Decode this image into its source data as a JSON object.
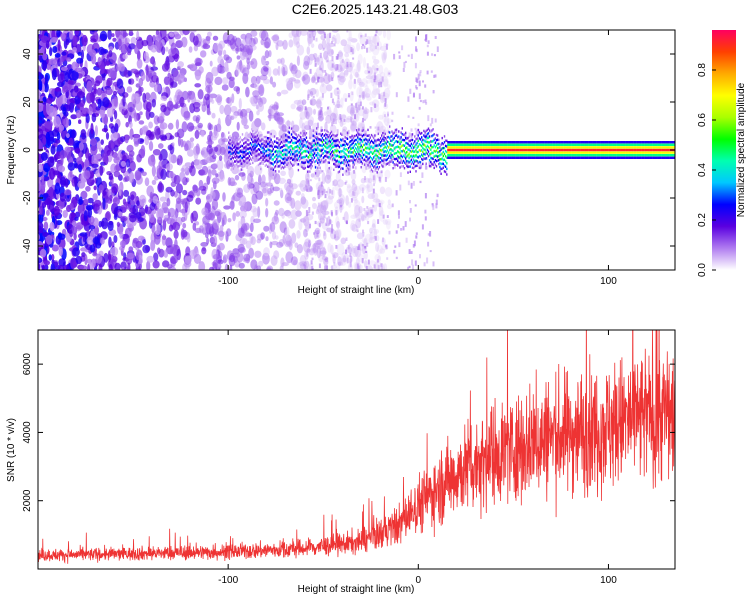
{
  "figure": {
    "title": "C2E6.2025.143.21.48.G03"
  },
  "chart_data": [
    {
      "type": "heatmap",
      "xlabel": "Height of straight line (km)",
      "ylabel": "Frequency (Hz)",
      "xlim": [
        -200,
        135
      ],
      "ylim": [
        -50,
        50
      ],
      "x_ticks": [
        -100,
        0,
        100
      ],
      "y_ticks": [
        -40,
        -20,
        0,
        20,
        40
      ],
      "colorbar": {
        "label": "Normalized spectral amplitude",
        "range": [
          0,
          0.96
        ],
        "ticks": [
          0.0,
          0.2,
          0.4,
          0.6,
          0.8
        ],
        "tick_labels": [
          "0.0",
          "0.2",
          "0.4",
          "0.6",
          "0.8"
        ],
        "colors": [
          "#ffffff",
          "#b07cf0",
          "#5a00e0",
          "#0000ff",
          "#00c8ff",
          "#00ffb0",
          "#00ff00",
          "#aaff00",
          "#ffff00",
          "#ffaa00",
          "#ff4000",
          "#ff0060"
        ]
      },
      "signal_band": {
        "center_frequency": 0,
        "noise_region_x": [
          -200,
          -30
        ],
        "signal_region_x": [
          -100,
          135
        ],
        "strong_region_x": [
          15,
          135
        ]
      }
    },
    {
      "type": "line",
      "xlabel": "Height of straight line (km)",
      "ylabel": "SNR (10 * v/v)",
      "xlim": [
        -200,
        135
      ],
      "ylim": [
        0,
        7000
      ],
      "x_ticks": [
        -100,
        0,
        100
      ],
      "y_ticks": [
        2000,
        4000,
        6000
      ],
      "line_color": "#ee3333",
      "trend": {
        "x": [
          -200,
          -150,
          -100,
          -60,
          -30,
          -10,
          0,
          20,
          40,
          60,
          80,
          100,
          120,
          135
        ],
        "y": [
          400,
          450,
          500,
          600,
          800,
          1300,
          1900,
          2800,
          3400,
          3700,
          4000,
          4200,
          4500,
          4600
        ]
      }
    }
  ]
}
